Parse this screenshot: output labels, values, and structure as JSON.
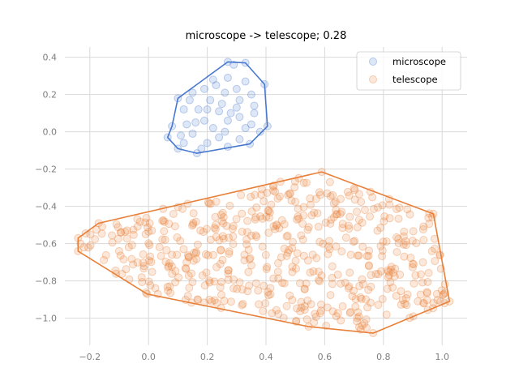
{
  "chart_data": {
    "type": "scatter",
    "title": "microscope -> telescope; 0.28",
    "xlabel": "",
    "ylabel": "",
    "xlim": [
      -0.285,
      1.085
    ],
    "ylim": [
      -1.145,
      0.455
    ],
    "xticks": [
      -0.2,
      0.0,
      0.2,
      0.4,
      0.6,
      0.8,
      1.0
    ],
    "xtick_labels": [
      "−0.2",
      "0.0",
      "0.2",
      "0.4",
      "0.6",
      "0.8",
      "1.0"
    ],
    "yticks": [
      0.4,
      0.2,
      0.0,
      -0.2,
      -0.4,
      -0.6,
      -0.8,
      -1.0
    ],
    "ytick_labels": [
      "0.4",
      "0.2",
      "0.0",
      "−0.2",
      "−0.4",
      "−0.6",
      "−0.8",
      "−1.0"
    ],
    "grid": true,
    "legend_position": "top-right",
    "series": [
      {
        "name": "microscope",
        "color": "#4878cf",
        "hull": [
          [
            0.27,
            0.375
          ],
          [
            0.33,
            0.37
          ],
          [
            0.395,
            0.255
          ],
          [
            0.405,
            0.03
          ],
          [
            0.345,
            -0.065
          ],
          [
            0.165,
            -0.115
          ],
          [
            0.1,
            -0.09
          ],
          [
            0.065,
            -0.03
          ],
          [
            0.08,
            0.03
          ],
          [
            0.1,
            0.18
          ]
        ],
        "points": [
          [
            0.27,
            0.375
          ],
          [
            0.33,
            0.37
          ],
          [
            0.395,
            0.255
          ],
          [
            0.405,
            0.03
          ],
          [
            0.345,
            -0.065
          ],
          [
            0.165,
            -0.115
          ],
          [
            0.1,
            -0.09
          ],
          [
            0.065,
            -0.03
          ],
          [
            0.08,
            0.03
          ],
          [
            0.1,
            0.18
          ],
          [
            0.22,
            0.28
          ],
          [
            0.29,
            0.36
          ],
          [
            0.27,
            0.29
          ],
          [
            0.33,
            0.27
          ],
          [
            0.19,
            0.23
          ],
          [
            0.15,
            0.21
          ],
          [
            0.26,
            0.21
          ],
          [
            0.35,
            0.2
          ],
          [
            0.31,
            0.17
          ],
          [
            0.21,
            0.17
          ],
          [
            0.12,
            0.12
          ],
          [
            0.17,
            0.12
          ],
          [
            0.24,
            0.11
          ],
          [
            0.3,
            0.13
          ],
          [
            0.36,
            0.1
          ],
          [
            0.19,
            0.06
          ],
          [
            0.27,
            0.06
          ],
          [
            0.31,
            0.08
          ],
          [
            0.13,
            0.04
          ],
          [
            0.22,
            0.02
          ],
          [
            0.33,
            0.02
          ],
          [
            0.38,
            0.0
          ],
          [
            0.15,
            -0.01
          ],
          [
            0.24,
            -0.03
          ],
          [
            0.31,
            -0.04
          ],
          [
            0.2,
            -0.06
          ],
          [
            0.12,
            -0.06
          ],
          [
            0.27,
            -0.08
          ],
          [
            0.18,
            -0.09
          ],
          [
            0.35,
            0.04
          ],
          [
            0.25,
            0.15
          ],
          [
            0.14,
            0.17
          ],
          [
            0.23,
            0.25
          ],
          [
            0.3,
            0.23
          ],
          [
            0.28,
            0.1
          ],
          [
            0.2,
            0.12
          ],
          [
            0.26,
            0.0
          ],
          [
            0.16,
            0.05
          ],
          [
            0.11,
            -0.02
          ],
          [
            0.36,
            0.14
          ]
        ]
      },
      {
        "name": "telescope",
        "color": "#e8803a",
        "hull": [
          [
            0.59,
            -0.215
          ],
          [
            0.97,
            -0.44
          ],
          [
            1.025,
            -0.91
          ],
          [
            0.765,
            -1.08
          ],
          [
            0.545,
            -1.045
          ],
          [
            -0.005,
            -0.87
          ],
          [
            -0.24,
            -0.64
          ],
          [
            -0.24,
            -0.57
          ],
          [
            -0.17,
            -0.49
          ]
        ]
      }
    ]
  }
}
